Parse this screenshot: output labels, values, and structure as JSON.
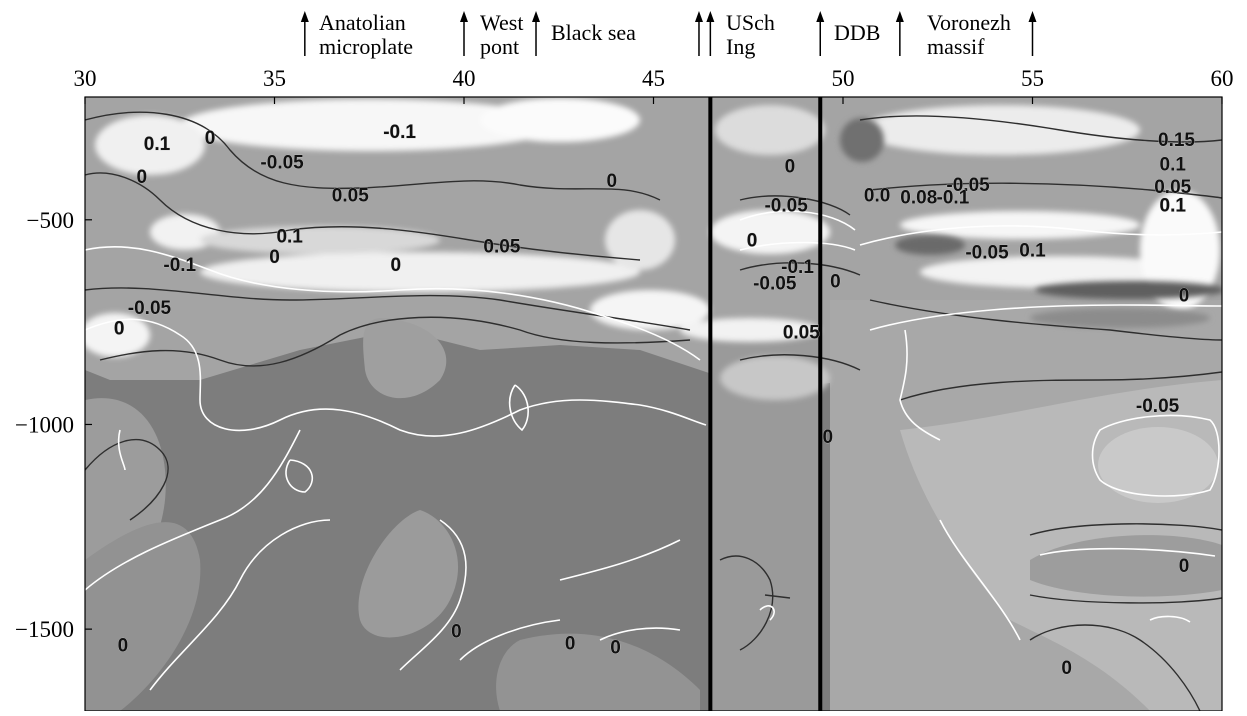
{
  "chart_data": {
    "type": "heatmap",
    "xlim": [
      30,
      60
    ],
    "ylim": [
      -1700,
      -200
    ],
    "x_ticks": [
      "30",
      "35",
      "40",
      "45",
      "50",
      "55",
      "60"
    ],
    "x_tick_values": [
      30,
      35,
      40,
      45,
      50,
      55,
      60
    ],
    "y_ticks": [
      "-500",
      "-1000",
      "-1500"
    ],
    "y_tick_values": [
      -500,
      -1000,
      -1500
    ],
    "vertical_lines": [
      46.5,
      49.4
    ],
    "regions": [
      {
        "label": "Anatolian\nmicroplate",
        "arrows": [
          35.8
        ]
      },
      {
        "label": "West\npont",
        "arrows": [
          40.0
        ]
      },
      {
        "label": "Black sea",
        "arrows": [
          41.9
        ]
      },
      {
        "label": "",
        "arrows": [
          46.2,
          46.5
        ]
      },
      {
        "label": "USch\nIng",
        "arrows": []
      },
      {
        "label": "DDB",
        "arrows": [
          49.4,
          51.5
        ]
      },
      {
        "label": "Voronezh\nmassif",
        "arrows": [
          55.0
        ]
      }
    ],
    "contour_labels": [
      {
        "text": "0.1",
        "x": 31.9,
        "y": -330
      },
      {
        "text": "-0.1",
        "x": 38.3,
        "y": -300
      },
      {
        "text": "-0.05",
        "x": 35.2,
        "y": -375
      },
      {
        "text": "0.05",
        "x": 37.0,
        "y": -455
      },
      {
        "text": "0.1",
        "x": 35.4,
        "y": -555
      },
      {
        "text": "0.05",
        "x": 41.0,
        "y": -580
      },
      {
        "text": "-0.1",
        "x": 32.5,
        "y": -625
      },
      {
        "text": "-0.05",
        "x": 31.7,
        "y": -730
      },
      {
        "text": "0",
        "x": 30.9,
        "y": -780
      },
      {
        "text": "0",
        "x": 35.0,
        "y": -605
      },
      {
        "text": "0",
        "x": 38.2,
        "y": -625
      },
      {
        "text": "0",
        "x": 43.9,
        "y": -420
      },
      {
        "text": "0",
        "x": 33.3,
        "y": -315
      },
      {
        "text": "0",
        "x": 31.5,
        "y": -410
      },
      {
        "text": "0",
        "x": 48.6,
        "y": -385
      },
      {
        "text": "-0.05",
        "x": 48.5,
        "y": -480
      },
      {
        "text": "0",
        "x": 47.6,
        "y": -565
      },
      {
        "text": "-0.1",
        "x": 48.8,
        "y": -630
      },
      {
        "text": "-0.05",
        "x": 48.2,
        "y": -670
      },
      {
        "text": "0",
        "x": 49.8,
        "y": -665
      },
      {
        "text": "0.05",
        "x": 48.9,
        "y": -790
      },
      {
        "text": "0",
        "x": 49.6,
        "y": -1045
      },
      {
        "text": "0.15",
        "x": 58.8,
        "y": -320
      },
      {
        "text": "0.1",
        "x": 58.7,
        "y": -380
      },
      {
        "text": "0.05",
        "x": 58.7,
        "y": -435
      },
      {
        "text": "-0.05",
        "x": 53.3,
        "y": -430
      },
      {
        "text": "0.08",
        "x": 52.0,
        "y": -460
      },
      {
        "text": "-0.1",
        "x": 52.9,
        "y": -460
      },
      {
        "text": "0.0",
        "x": 50.9,
        "y": -455
      },
      {
        "text": "0.1",
        "x": 58.7,
        "y": -480
      },
      {
        "text": "-0.05",
        "x": 53.8,
        "y": -595
      },
      {
        "text": "0.1",
        "x": 55.0,
        "y": -590
      },
      {
        "text": "0",
        "x": 59.0,
        "y": -700
      },
      {
        "text": "-0.05",
        "x": 58.3,
        "y": -970
      },
      {
        "text": "0",
        "x": 59.0,
        "y": -1360
      },
      {
        "text": "0",
        "x": 31.0,
        "y": -1555
      },
      {
        "text": "0",
        "x": 39.8,
        "y": -1520
      },
      {
        "text": "0",
        "x": 42.8,
        "y": -1550
      },
      {
        "text": "0",
        "x": 44.0,
        "y": -1560
      },
      {
        "text": "0",
        "x": 55.9,
        "y": -1610
      }
    ]
  }
}
